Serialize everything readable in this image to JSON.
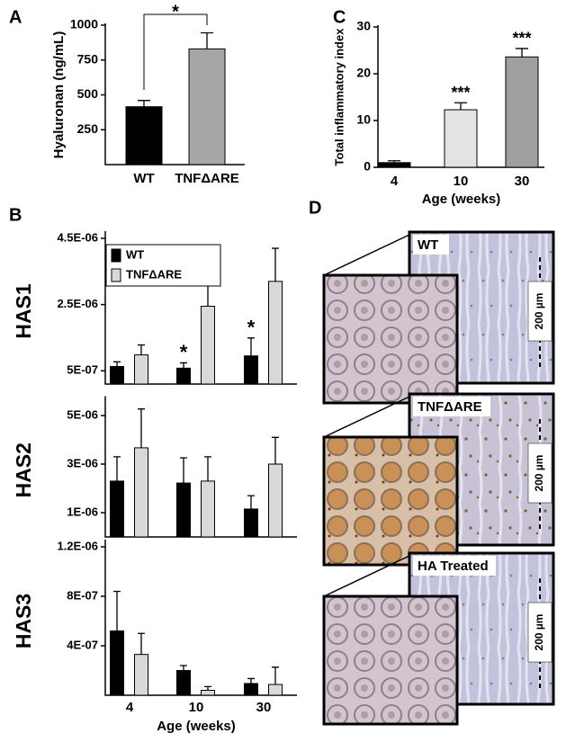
{
  "chart_data": [
    {
      "type": "bar",
      "panel_label": "A",
      "ylabel": "Hyaluronan (ng/mL)",
      "categories": [
        "WT",
        "TNFΔARE"
      ],
      "values": [
        415,
        830
      ],
      "errors": [
        45,
        115
      ],
      "colors": [
        "#000000",
        "#a6a6a6"
      ],
      "ylim": [
        0,
        1000
      ],
      "yticks": [
        250,
        500,
        750,
        1000
      ],
      "significance": "*"
    },
    {
      "type": "bar",
      "panel_label": "C",
      "ylabel": "Total inflammatory index",
      "xlabel": "Age (weeks)",
      "categories": [
        "4",
        "10",
        "30"
      ],
      "values": [
        1,
        12.3,
        23.6
      ],
      "errors": [
        0.4,
        1.5,
        1.8
      ],
      "colors": [
        "#000000",
        "#e3e3e3",
        "#a0a0a0"
      ],
      "ylim": [
        0,
        30
      ],
      "yticks": [
        0,
        10,
        20,
        30
      ],
      "significance": [
        null,
        "***",
        "***"
      ]
    },
    {
      "type": "grouped_bar",
      "panel_label": "B",
      "xlabel": "Age (weeks)",
      "categories": [
        "4",
        "10",
        "30"
      ],
      "series": [
        {
          "name": "WT",
          "color": "#000000"
        },
        {
          "name": "TNFΔARE",
          "color": "#d9d9d9"
        }
      ],
      "subplots": [
        {
          "ylabel": "HAS1",
          "ylim": [
            1e-07,
            4.5e-06
          ],
          "yticks": [
            {
              "value": 5e-07,
              "label": "5E-07"
            },
            {
              "value": 2.5e-06,
              "label": "2.5E-06"
            },
            {
              "value": 4.5e-06,
              "label": "4.5E-06"
            }
          ],
          "series": [
            {
              "values": [
                6.3e-07,
                5.8e-07,
                9.5e-07
              ],
              "errors": [
                1.4e-07,
                1.6e-07,
                5.4e-07
              ],
              "significance": [
                null,
                "*",
                "*"
              ]
            },
            {
              "values": [
                9.8e-07,
                2.45e-06,
                3.2e-06
              ],
              "errors": [
                3e-07,
                6.5e-07,
                1e-06
              ]
            }
          ]
        },
        {
          "ylabel": "HAS2",
          "ylim": [
            0,
            5.5e-06
          ],
          "yticks": [
            {
              "value": 1e-06,
              "label": "1E-06"
            },
            {
              "value": 3e-06,
              "label": "3E-06"
            },
            {
              "value": 5e-06,
              "label": "5E-06"
            }
          ],
          "series": [
            {
              "values": [
                2.3e-06,
                2.22e-06,
                1.15e-06
              ],
              "errors": [
                1e-06,
                1.04e-06,
                5.5e-07
              ]
            },
            {
              "values": [
                3.67e-06,
                2.3e-06,
                3e-06
              ],
              "errors": [
                1.6e-06,
                1e-06,
                1.1e-06
              ]
            }
          ]
        },
        {
          "ylabel": "HAS3",
          "ylim": [
            0,
            1.2e-06
          ],
          "yticks": [
            {
              "value": 4e-07,
              "label": "4E-07"
            },
            {
              "value": 8e-07,
              "label": "8E-07"
            },
            {
              "value": 1.2e-06,
              "label": "1.2E-06"
            }
          ],
          "series": [
            {
              "values": [
                5.2e-07,
                2e-07,
                9.5e-08
              ],
              "errors": [
                3.2e-07,
                4e-08,
                4e-08
              ]
            },
            {
              "values": [
                3.3e-07,
                4e-08,
                8.7e-08
              ],
              "errors": [
                1.7e-07,
                3e-08,
                1.4e-07
              ]
            }
          ]
        }
      ]
    }
  ],
  "micrographs": {
    "panel_label": "D",
    "images": [
      {
        "label": "WT",
        "scale_bar": "200 µm"
      },
      {
        "label": "TNFΔARE",
        "scale_bar": "200 µm"
      },
      {
        "label": "HA Treated",
        "scale_bar": "200 µm"
      }
    ]
  }
}
